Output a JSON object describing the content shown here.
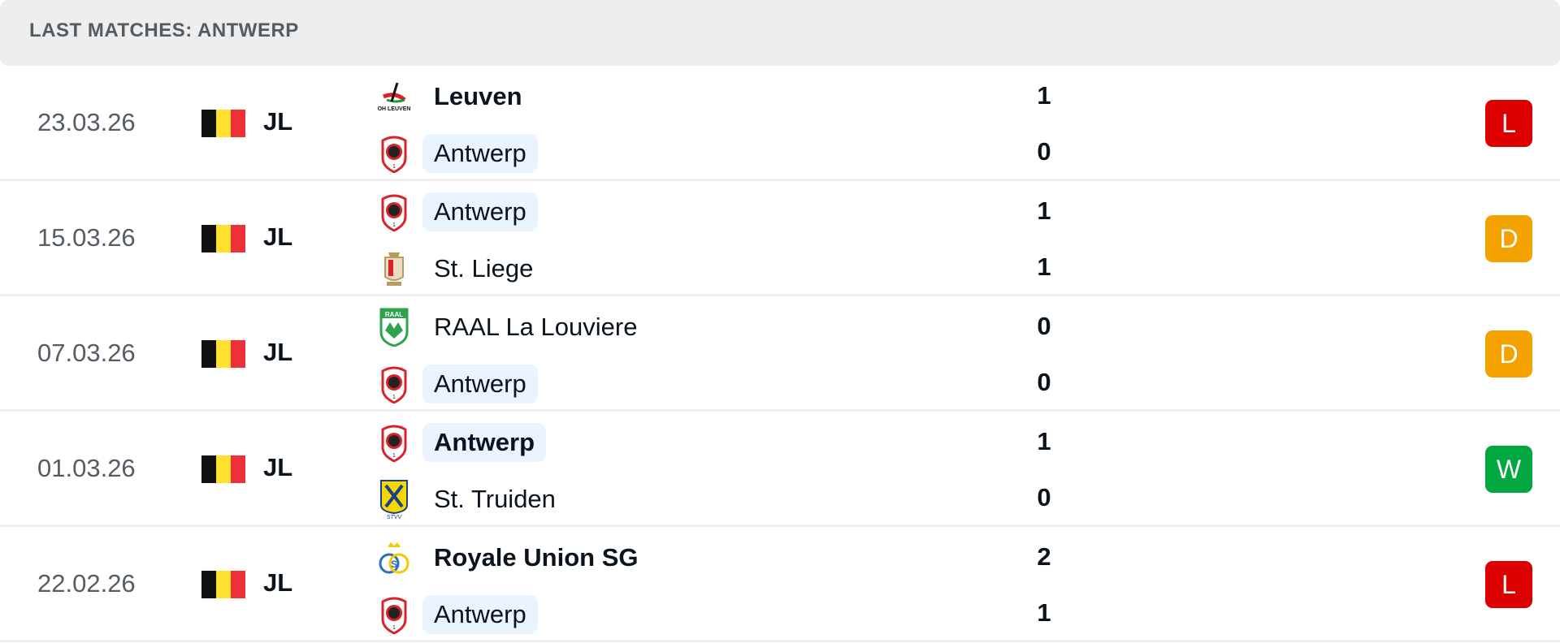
{
  "header": {
    "title": "LAST MATCHES: ANTWERP"
  },
  "colors": {
    "loss": "#dc0000",
    "draw": "#f4a200",
    "win": "#00a83f",
    "highlight": "#eaf4ff"
  },
  "matches": [
    {
      "date": "23.03.26",
      "league": "JL",
      "flag": "belgium-flag",
      "home": {
        "name": "Leuven",
        "logo": "oh-leuven-logo",
        "bold": true,
        "highlight": false
      },
      "away": {
        "name": "Antwerp",
        "logo": "antwerp-logo",
        "bold": false,
        "highlight": true
      },
      "home_score": "1",
      "away_score": "0",
      "result": "L"
    },
    {
      "date": "15.03.26",
      "league": "JL",
      "flag": "belgium-flag",
      "home": {
        "name": "Antwerp",
        "logo": "antwerp-logo",
        "bold": false,
        "highlight": true
      },
      "away": {
        "name": "St. Liege",
        "logo": "standard-liege-logo",
        "bold": false,
        "highlight": false
      },
      "home_score": "1",
      "away_score": "1",
      "result": "D"
    },
    {
      "date": "07.03.26",
      "league": "JL",
      "flag": "belgium-flag",
      "home": {
        "name": "RAAL La Louviere",
        "logo": "raal-logo",
        "bold": false,
        "highlight": false
      },
      "away": {
        "name": "Antwerp",
        "logo": "antwerp-logo",
        "bold": false,
        "highlight": true
      },
      "home_score": "0",
      "away_score": "0",
      "result": "D"
    },
    {
      "date": "01.03.26",
      "league": "JL",
      "flag": "belgium-flag",
      "home": {
        "name": "Antwerp",
        "logo": "antwerp-logo",
        "bold": true,
        "highlight": true
      },
      "away": {
        "name": "St. Truiden",
        "logo": "stvv-logo",
        "bold": false,
        "highlight": false
      },
      "home_score": "1",
      "away_score": "0",
      "result": "W"
    },
    {
      "date": "22.02.26",
      "league": "JL",
      "flag": "belgium-flag",
      "home": {
        "name": "Royale Union SG",
        "logo": "union-sg-logo",
        "bold": true,
        "highlight": false
      },
      "away": {
        "name": "Antwerp",
        "logo": "antwerp-logo",
        "bold": false,
        "highlight": true
      },
      "home_score": "2",
      "away_score": "1",
      "result": "L"
    }
  ]
}
